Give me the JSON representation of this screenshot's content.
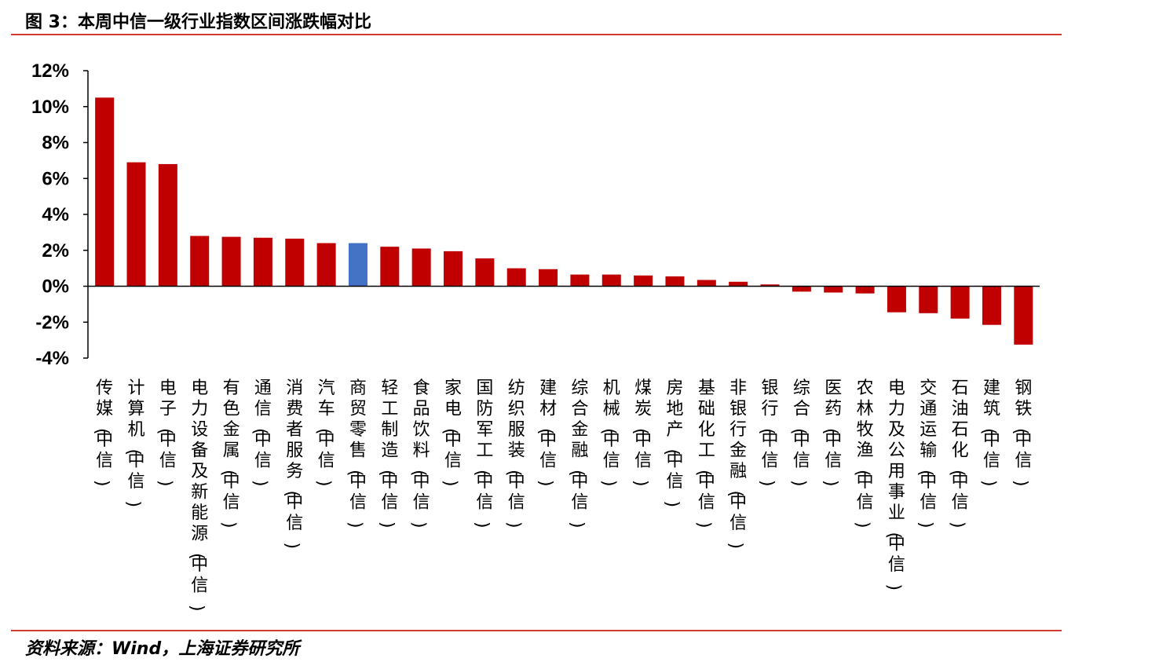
{
  "figure": {
    "title": "图 3：本周中信一级行业指数区间涨跌幅对比",
    "source": "资料来源：Wind，上海证券研究所"
  },
  "colors": {
    "bar": "#c00000",
    "highlight_bar": "#4472c4",
    "rule": "#d23a32"
  },
  "chart_data": {
    "type": "bar",
    "title": "",
    "xlabel": "",
    "ylabel": "",
    "ylim": [
      -4,
      12
    ],
    "yticks": [
      "12%",
      "10%",
      "8%",
      "6%",
      "4%",
      "2%",
      "0%",
      "-2%",
      "-4%"
    ],
    "grid": false,
    "legend": "none",
    "highlight_index": 8,
    "categories": [
      "传媒(中信)",
      "计算机(中信)",
      "电子(中信)",
      "电力设备及新能源(中信)",
      "有色金属(中信)",
      "通信(中信)",
      "消费者服务(中信)",
      "汽车(中信)",
      "商贸零售(中信)",
      "轻工制造(中信)",
      "食品饮料(中信)",
      "家电(中信)",
      "国防军工(中信)",
      "纺织服装(中信)",
      "建材(中信)",
      "综合金融(中信)",
      "机械(中信)",
      "煤炭(中信)",
      "房地产(中信)",
      "基础化工(中信)",
      "非银行金融(中信)",
      "银行(中信)",
      "综合(中信)",
      "医药(中信)",
      "农林牧渔(中信)",
      "电力及公用事业(中信)",
      "交通运输(中信)",
      "石油石化(中信)",
      "建筑(中信)",
      "钢铁(中信)"
    ],
    "values": [
      10.5,
      6.9,
      6.8,
      2.8,
      2.75,
      2.7,
      2.65,
      2.4,
      2.4,
      2.2,
      2.1,
      1.95,
      1.55,
      1.0,
      0.95,
      0.65,
      0.65,
      0.6,
      0.55,
      0.35,
      0.25,
      0.1,
      -0.3,
      -0.35,
      -0.4,
      -1.45,
      -1.5,
      -1.8,
      -2.15,
      -3.25
    ]
  }
}
